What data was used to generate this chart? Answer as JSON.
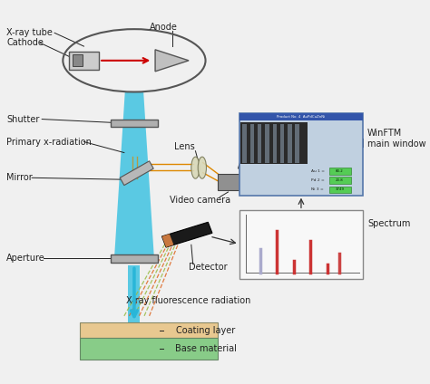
{
  "bg_color": "#f0f0f0",
  "labels": {
    "xray_tube": "X-ray tube",
    "cathode": "Cathode",
    "anode": "Anode",
    "shutter": "Shutter",
    "primary_xrad": "Primary x-radiation",
    "mirror": "Mirror",
    "lens": "Lens",
    "video_camera": "Video camera",
    "winftm": "WinFTM\nmain window",
    "spectrum": "Spectrum",
    "aperture": "Aperture",
    "detector": "Detector",
    "xray_fluor": "X-ray fluorescence radiation",
    "coating": "Coating layer",
    "base": "Base material"
  },
  "colors": {
    "beam_blue": "#29b6d8",
    "red_arrow": "#cc0000",
    "orange_lines": "#dd8800",
    "coating_color": "#e8c890",
    "base_color": "#88cc88",
    "tube_outline": "#555555",
    "shutter_color": "#b0b0b0",
    "detector_color": "#1a1a1a",
    "winftm_bg": "#c0d0e0",
    "spectrum_bg": "#ffffff",
    "label_color": "#222222"
  }
}
